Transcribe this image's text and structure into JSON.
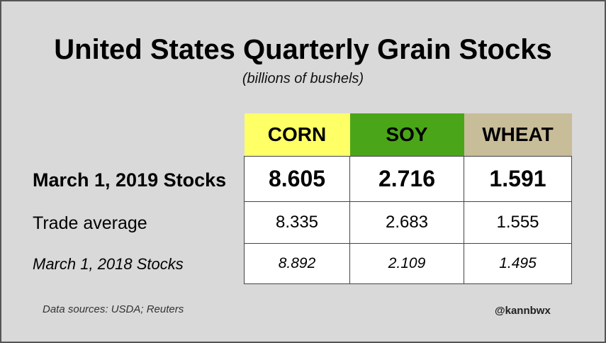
{
  "chart_data": {
    "type": "table",
    "title": "United States Quarterly Grain Stocks",
    "subtitle": "(billions of bushels)",
    "columns": [
      {
        "name": "CORN",
        "color": "#ffff66"
      },
      {
        "name": "SOY",
        "color": "#4aa618"
      },
      {
        "name": "WHEAT",
        "color": "#c8bd99"
      }
    ],
    "rows": [
      {
        "label": "March 1, 2019 Stocks",
        "values": [
          "8.605",
          "2.716",
          "1.591"
        ]
      },
      {
        "label": "Trade average",
        "values": [
          "8.335",
          "2.683",
          "1.555"
        ]
      },
      {
        "label": "March 1, 2018 Stocks",
        "values": [
          "8.892",
          "2.109",
          "1.495"
        ]
      }
    ]
  },
  "footer": {
    "source": "Data sources: USDA; Reuters",
    "handle": "@kannbwx"
  }
}
